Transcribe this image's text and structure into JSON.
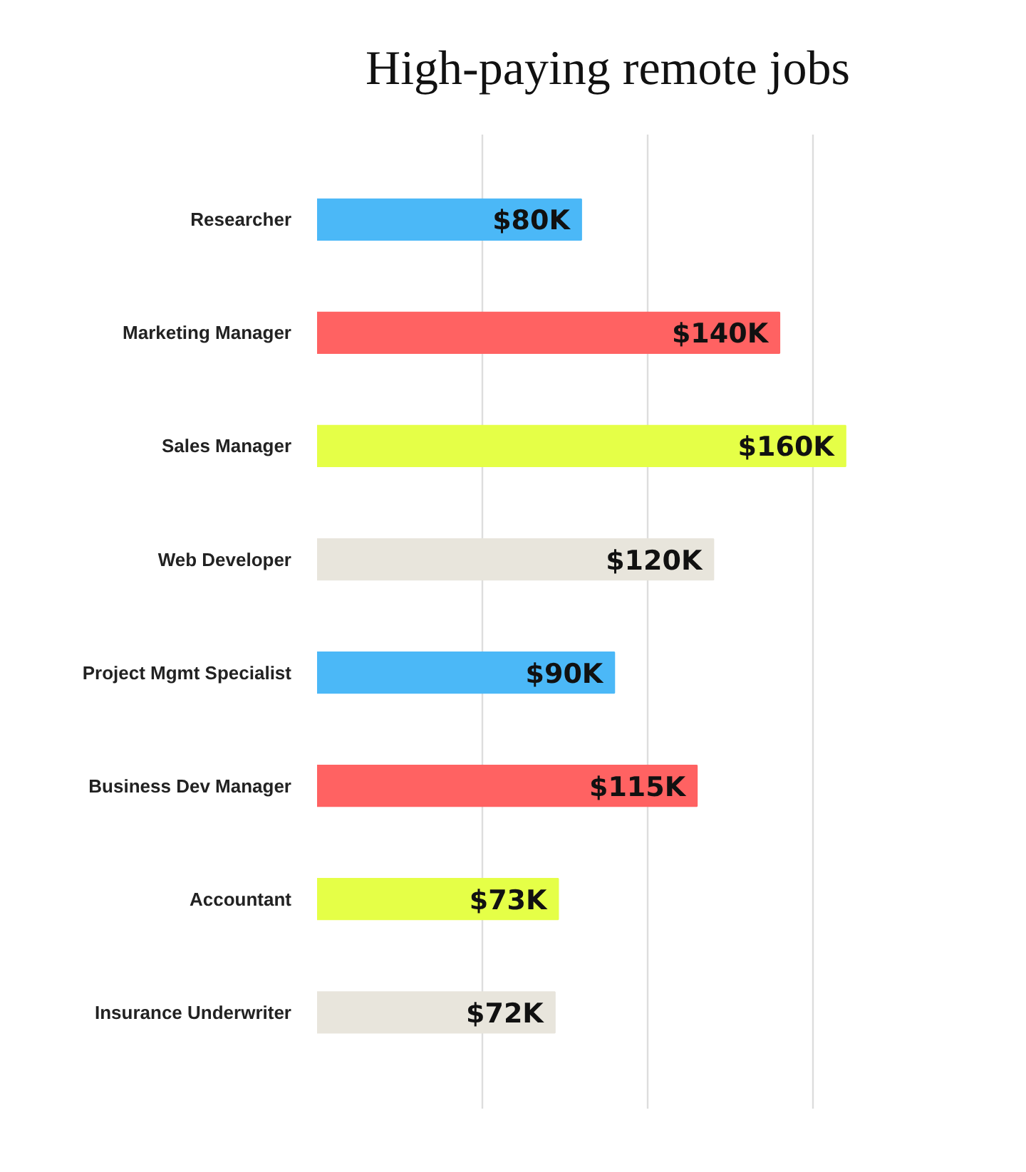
{
  "chart_data": {
    "type": "bar",
    "orientation": "horizontal",
    "title": "High-paying remote jobs",
    "categories": [
      "Researcher",
      "Marketing Manager",
      "Sales Manager",
      "Web Developer",
      "Project Mgmt Specialist",
      "Business Dev Manager",
      "Accountant",
      "Insurance Underwriter"
    ],
    "values": [
      80,
      140,
      160,
      120,
      90,
      115,
      73,
      72
    ],
    "colors": [
      "#4bb8f7",
      "#ff6262",
      "#e5ff47",
      "#e8e5dc",
      "#4bb8f7",
      "#ff6262",
      "#e5ff47",
      "#e8e5dc"
    ],
    "value_labels": [
      "$80K",
      "$140K",
      "$160K",
      "$120K",
      "$90K",
      "$115K",
      "$73K",
      "$72K"
    ],
    "data_labels": true,
    "grid": "x",
    "tick_labels": "y"
  }
}
